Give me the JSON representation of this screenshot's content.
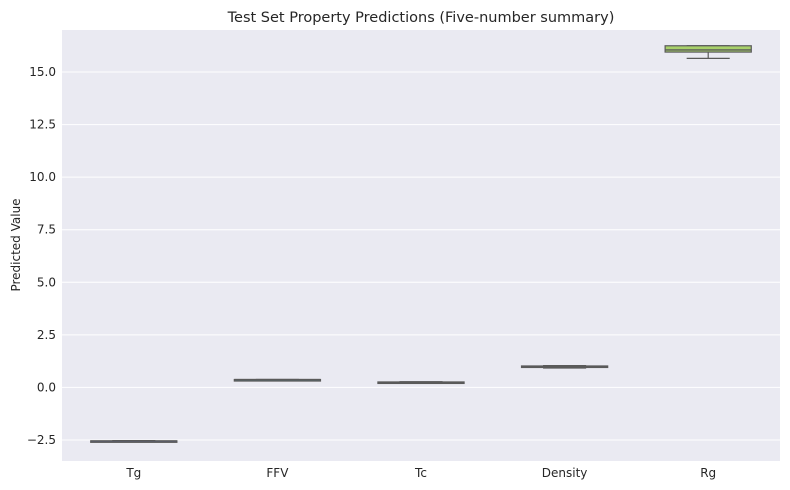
{
  "chart_data": {
    "type": "box",
    "title": "Test Set Property Predictions (Five-number summary)",
    "xlabel": "",
    "ylabel": "Predicted Value",
    "ylim": [
      -3.5,
      17.0
    ],
    "yticks": [
      -2.5,
      0.0,
      2.5,
      5.0,
      7.5,
      10.0,
      12.5,
      15.0
    ],
    "ytick_labels": [
      "−2.5",
      "0.0",
      "2.5",
      "5.0",
      "7.5",
      "10.0",
      "12.5",
      "15.0"
    ],
    "grid": true,
    "categories": [
      "Tg",
      "FFV",
      "Tc",
      "Density",
      "Rg"
    ],
    "boxes": [
      {
        "label": "Tg",
        "min": -2.58,
        "q1": -2.56,
        "median": -2.55,
        "q3": -2.54,
        "max": -2.53,
        "color": "#5b6ad1"
      },
      {
        "label": "FFV",
        "min": 0.36,
        "q1": 0.365,
        "median": 0.37,
        "q3": 0.375,
        "max": 0.38,
        "color": "#3fa3c5"
      },
      {
        "label": "Tc",
        "min": 0.2,
        "q1": 0.21,
        "median": 0.22,
        "q3": 0.26,
        "max": 0.27,
        "color": "#2fb597"
      },
      {
        "label": "Density",
        "min": 0.92,
        "q1": 0.95,
        "median": 0.98,
        "q3": 1.02,
        "max": 1.04,
        "color": "#55c06b"
      },
      {
        "label": "Rg",
        "min": 15.65,
        "q1": 15.95,
        "median": 16.05,
        "q3": 16.25,
        "max": 16.25,
        "color": "#a8d06a"
      }
    ],
    "colors": {
      "background": "#eaeaf2",
      "grid": "#ffffff",
      "line": "#5a5a5a",
      "text": "#262626"
    }
  }
}
